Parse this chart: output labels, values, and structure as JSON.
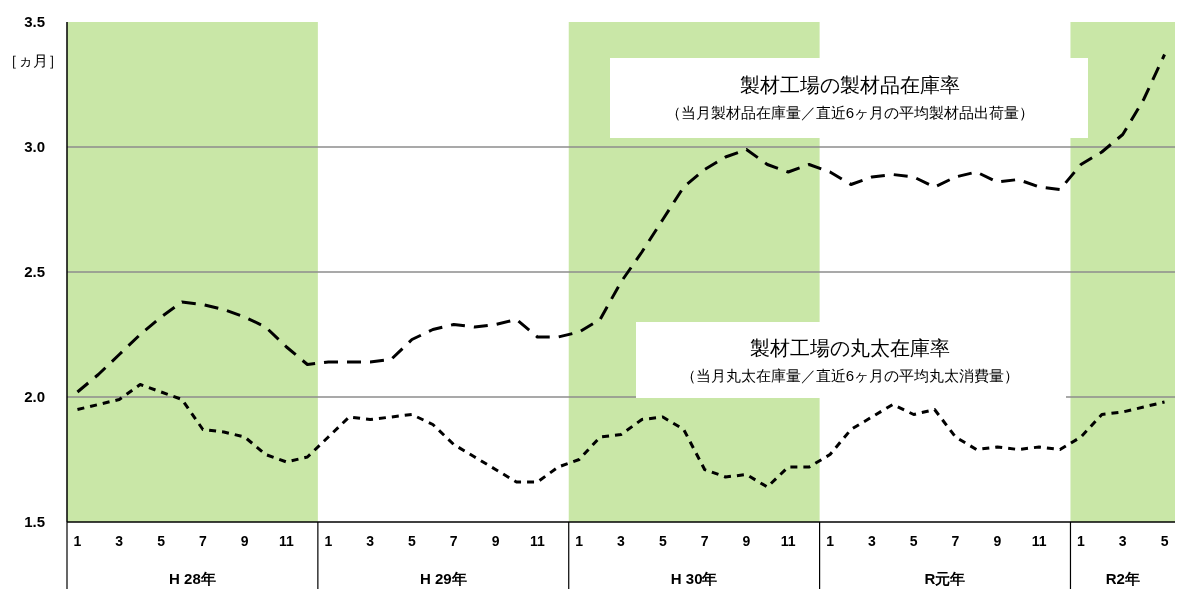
{
  "chart_data": {
    "type": "line",
    "ylabel": "［ヵ月］",
    "categories": [
      "1",
      null,
      "3",
      null,
      "5",
      null,
      "7",
      null,
      "9",
      null,
      "11",
      null,
      "1",
      null,
      "3",
      null,
      "5",
      null,
      "7",
      null,
      "9",
      null,
      "11",
      null,
      "1",
      null,
      "3",
      null,
      "5",
      null,
      "7",
      null,
      "9",
      null,
      "11",
      null,
      "1",
      null,
      "3",
      null,
      "5",
      null,
      "7",
      null,
      "9",
      null,
      "11",
      null,
      "1",
      null,
      "3",
      null,
      "5"
    ],
    "ylim": [
      1.5,
      3.5
    ],
    "yticks": [
      {
        "value": 1.5,
        "label": "1.5"
      },
      {
        "value": 2,
        "label": "2.0"
      },
      {
        "value": 2.5,
        "label": "2.5"
      },
      {
        "value": 3,
        "label": "3.0"
      },
      {
        "value": 3.5,
        "label": "3.5"
      }
    ],
    "grid": "y",
    "annotations": [
      "（当月製材品在庫量／直近6ヶ月の平均製材品出荷量）",
      "（当月丸太在庫量／直近6ヶ月の平均丸太消費量）",
      "H 28年",
      "H 29年",
      "H 30年",
      "R元年",
      "R2年"
    ],
    "series": [
      {
        "name": "製材工場の製材品在庫率",
        "color": "#000000",
        "line_style": "dashed",
        "values": [
          2.02,
          2.09,
          2.17,
          2.25,
          2.32,
          2.38,
          2.37,
          2.35,
          2.32,
          2.28,
          2.2,
          2.13,
          2.14,
          2.14,
          2.14,
          2.15,
          2.23,
          2.27,
          2.29,
          2.28,
          2.29,
          2.31,
          2.24,
          2.24,
          2.26,
          2.31,
          2.46,
          2.58,
          2.71,
          2.84,
          2.91,
          2.96,
          2.99,
          2.93,
          2.9,
          2.93,
          2.9,
          2.85,
          2.88,
          2.89,
          2.88,
          2.84,
          2.88,
          2.9,
          2.86,
          2.87,
          2.84,
          2.83,
          2.93,
          2.98,
          3.05,
          3.19,
          3.37
        ]
      },
      {
        "name": "製材工場の丸太在庫率",
        "color": "#000000",
        "line_style": "dotted",
        "values": [
          1.95,
          1.97,
          1.99,
          2.05,
          2.02,
          1.99,
          1.87,
          1.86,
          1.84,
          1.77,
          1.74,
          1.76,
          1.84,
          1.92,
          1.91,
          1.92,
          1.93,
          1.89,
          1.81,
          1.76,
          1.71,
          1.66,
          1.66,
          1.72,
          1.75,
          1.84,
          1.85,
          1.91,
          1.92,
          1.87,
          1.71,
          1.68,
          1.69,
          1.64,
          1.72,
          1.72,
          1.77,
          1.87,
          1.92,
          1.97,
          1.93,
          1.95,
          1.84,
          1.79,
          1.8,
          1.79,
          1.8,
          1.79,
          1.84,
          1.93,
          1.94,
          1.96,
          1.98
        ]
      }
    ]
  }
}
